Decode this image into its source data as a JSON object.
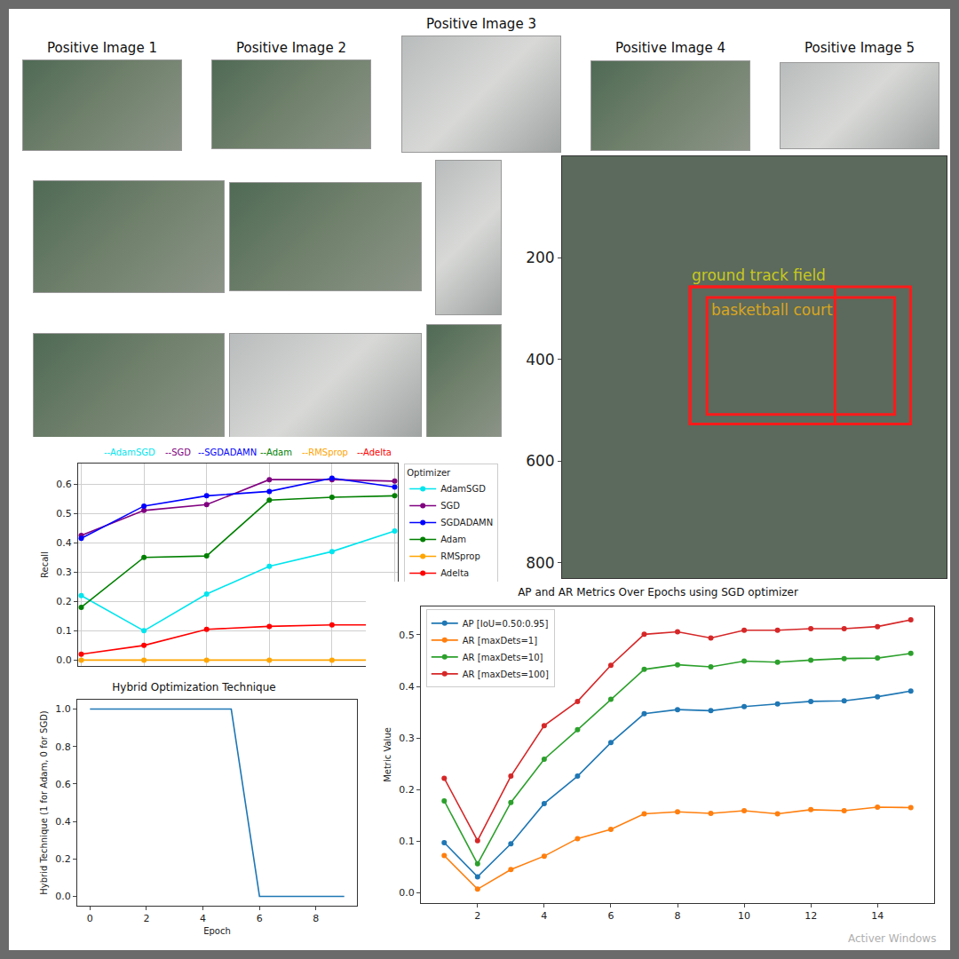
{
  "image_panels": {
    "titles": [
      "Positive Image 1",
      "Positive Image 2",
      "Positive Image 3",
      "Positive Image 4",
      "Positive Image 5"
    ]
  },
  "watermark": "Activer Windows",
  "chart_data": [
    {
      "type": "line",
      "annotations": [
        "--AdamSGD",
        "--SGD",
        "--SGDADAMN",
        "--Adam",
        "--RMSprop",
        "--Adelta"
      ],
      "y_label": "Recall",
      "legend_title": "Optimizer",
      "legend": "right",
      "grid": true,
      "tick_labels": "y",
      "marker": "circle",
      "x": [
        0,
        1,
        2,
        3,
        4,
        5
      ],
      "xlim": [
        -0.05,
        5.05
      ],
      "xticks": [
        0,
        1,
        2,
        3,
        4,
        5
      ],
      "ylim": [
        -0.02,
        0.67
      ],
      "yticks": [
        {
          "value": 0,
          "label": "0.0"
        },
        0.1,
        0.2,
        0.3,
        0.4,
        0.5,
        0.6
      ],
      "series": [
        {
          "name": "AdamSGD",
          "color": "#00e5ee",
          "values": [
            0.22,
            0.1,
            0.225,
            0.32,
            0.37,
            0.44
          ]
        },
        {
          "name": "SGD",
          "color": "#800080",
          "values": [
            0.425,
            0.51,
            0.53,
            0.615,
            0.615,
            0.61
          ]
        },
        {
          "name": "SGDADAMN",
          "color": "#0000ff",
          "values": [
            0.415,
            0.525,
            0.56,
            0.575,
            0.62,
            0.59
          ]
        },
        {
          "name": "Adam",
          "color": "#008000",
          "values": [
            0.18,
            0.35,
            0.355,
            0.545,
            0.555,
            0.56
          ]
        },
        {
          "name": "RMSprop",
          "color": "#ffa500",
          "values": [
            0,
            0,
            0,
            0,
            0,
            0
          ]
        },
        {
          "name": "Adelta",
          "color": "#ff0000",
          "values": [
            0.02,
            0.05,
            0.105,
            0.115,
            0.12,
            0.12
          ]
        }
      ]
    },
    {
      "type": "line",
      "title": "Hybrid Optimization Technique",
      "x_label": "Epoch",
      "y_label": "Hybrid Technique (1 for Adam, 0 for SGD)",
      "grid": false,
      "x": [
        0,
        1,
        2,
        3,
        4,
        5,
        6,
        7,
        8,
        9
      ],
      "xlim": [
        -0.45,
        9.45
      ],
      "xticks": [
        0,
        2,
        4,
        6,
        8
      ],
      "ylim": [
        -0.05,
        1.05
      ],
      "yticks": [
        {
          "value": 0,
          "label": "0.0"
        },
        0.2,
        0.4,
        0.6,
        0.8,
        {
          "value": 1,
          "label": "1.0"
        }
      ],
      "series": [
        {
          "color": "#1f77b4",
          "values": [
            1,
            1,
            1,
            1,
            1,
            1,
            0,
            0,
            0,
            0
          ]
        }
      ]
    },
    {
      "type": "line",
      "title": "AP and AR Metrics Over Epochs using SGD optimizer",
      "y_label": "Metric Value",
      "legend": "upper left",
      "grid": false,
      "marker": "circle",
      "x": [
        1,
        2,
        3,
        4,
        5,
        6,
        7,
        8,
        9,
        10,
        11,
        12,
        13,
        14,
        15
      ],
      "xlim": [
        0.3,
        15.7
      ],
      "xticks": [
        2,
        4,
        6,
        8,
        10,
        12,
        14
      ],
      "ylim": [
        -0.02,
        0.555
      ],
      "yticks": [
        {
          "value": 0,
          "label": "0.0"
        },
        0.1,
        0.2,
        0.3,
        0.4,
        0.5
      ],
      "series": [
        {
          "name": "AP [IoU=0.50:0.95]",
          "color": "#1f77b4",
          "values": [
            0.097,
            0.031,
            0.095,
            0.173,
            0.226,
            0.291,
            0.347,
            0.355,
            0.353,
            0.361,
            0.366,
            0.371,
            0.372,
            0.38,
            0.391
          ]
        },
        {
          "name": "AR [maxDets=1]",
          "color": "#ff7f0e",
          "values": [
            0.072,
            0.007,
            0.045,
            0.071,
            0.105,
            0.123,
            0.153,
            0.157,
            0.154,
            0.159,
            0.153,
            0.161,
            0.159,
            0.166,
            0.165
          ]
        },
        {
          "name": "AR [maxDets=10]",
          "color": "#2ca02c",
          "values": [
            0.178,
            0.056,
            0.175,
            0.259,
            0.316,
            0.375,
            0.433,
            0.442,
            0.438,
            0.449,
            0.447,
            0.451,
            0.454,
            0.455,
            0.464
          ]
        },
        {
          "name": "AR [maxDets=100]",
          "color": "#d62728",
          "values": [
            0.222,
            0.101,
            0.226,
            0.324,
            0.371,
            0.441,
            0.501,
            0.506,
            0.494,
            0.509,
            0.509,
            0.512,
            0.512,
            0.516,
            0.529
          ]
        }
      ]
    },
    {
      "type": "image",
      "tick_labels": "y",
      "xlim": [
        0,
        748
      ],
      "ylim": [
        830,
        0
      ],
      "yticks": [
        200,
        400,
        600,
        800
      ],
      "boxes": [
        {
          "label": "ground track field",
          "color": "#c8c81e",
          "x": [
            249,
            678
          ],
          "y": [
            257,
            527
          ]
        },
        {
          "label": "basketball court",
          "color": "#d9a520",
          "x": [
            282,
            647
          ],
          "y": [
            278,
            508
          ]
        },
        {
          "x": [
            249,
            531
          ],
          "y": [
            257,
            527
          ]
        }
      ]
    }
  ]
}
